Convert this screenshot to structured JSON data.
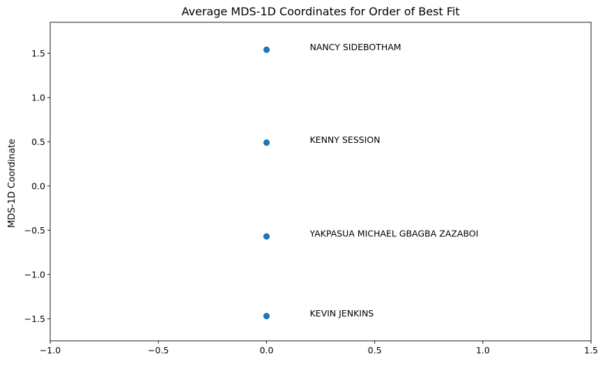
{
  "chart_data": {
    "type": "scatter",
    "title": "Average MDS-1D Coordinates for Order of Best Fit",
    "xlabel": "",
    "ylabel": "MDS-1D Coordinate",
    "xlim": [
      -1.0,
      1.5
    ],
    "ylim": [
      -1.75,
      1.85
    ],
    "xticks": [
      -1.0,
      -0.5,
      0.0,
      0.5,
      1.0,
      1.5
    ],
    "xtick_labels": [
      "−1.0",
      "−0.5",
      "0.0",
      "0.5",
      "1.0",
      "1.5"
    ],
    "yticks": [
      -1.5,
      -1.0,
      -0.5,
      0.0,
      0.5,
      1.0,
      1.5
    ],
    "ytick_labels": [
      "−1.5",
      "−1.0",
      "−0.5",
      "0.0",
      "0.5",
      "1.0",
      "1.5"
    ],
    "grid": false,
    "marker_color": "#1f77b4",
    "points": [
      {
        "x": 0.0,
        "y": 1.54,
        "label": "NANCY SIDEBOTHAM"
      },
      {
        "x": 0.0,
        "y": 0.49,
        "label": "KENNY SESSION"
      },
      {
        "x": 0.0,
        "y": -0.57,
        "label": "YAKPASUA MICHAEL GBAGBA ZAZABOI"
      },
      {
        "x": 0.0,
        "y": -1.47,
        "label": "KEVIN JENKINS"
      }
    ],
    "label_x": 0.2
  }
}
